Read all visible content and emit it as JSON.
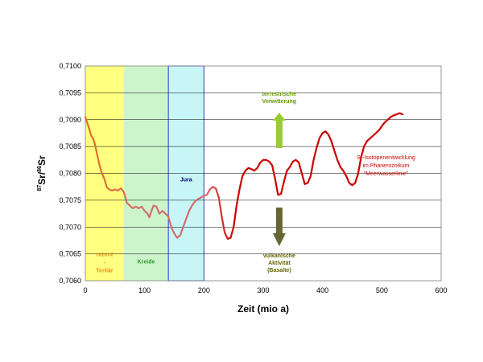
{
  "chart_data": {
    "type": "line",
    "xlabel": "Zeit (mio a)",
    "ylabel_parts": {
      "sup1": "87",
      "base1": "Sr/",
      "sup2": "86",
      "base2": "Sr"
    },
    "xlim": [
      0,
      600
    ],
    "ylim": [
      0.706,
      0.71
    ],
    "x_ticks": [
      "0",
      "100",
      "200",
      "300",
      "400",
      "500",
      "600"
    ],
    "y_ticks": [
      "0,7060",
      "0,7065",
      "0,7070",
      "0,7075",
      "0,7080",
      "0,7085",
      "0,7090",
      "0,7095",
      "0,7100"
    ],
    "grid": "horizontal",
    "periods": [
      {
        "from": 0,
        "to": 65,
        "color": "#ffff80",
        "lines": [
          "rezent",
          "-",
          "Tertiär"
        ],
        "label_color": "#e09020",
        "label_pos": "bottom"
      },
      {
        "from": 65,
        "to": 140,
        "color": "#ccf5cc",
        "lines": [
          "Kreide"
        ],
        "label_color": "#339933",
        "label_pos": "bottom"
      },
      {
        "from": 140,
        "to": 200,
        "color": "#c8f6f6",
        "lines": [
          "Jura"
        ],
        "label_color": "#000080",
        "label_pos": "top",
        "border": "#3333cc"
      }
    ],
    "series": [
      {
        "color": "#cc0000",
        "points": [
          [
            0,
            0.70905
          ],
          [
            3,
            0.70895
          ],
          [
            6,
            0.70885
          ],
          [
            10,
            0.7087
          ],
          [
            13,
            0.70865
          ],
          [
            16,
            0.70855
          ],
          [
            20,
            0.70835
          ],
          [
            24,
            0.70815
          ],
          [
            28,
            0.708
          ],
          [
            32,
            0.7079
          ],
          [
            36,
            0.70775
          ],
          [
            40,
            0.7077
          ],
          [
            45,
            0.70768
          ],
          [
            50,
            0.7077
          ],
          [
            55,
            0.70768
          ],
          [
            60,
            0.70772
          ],
          [
            65,
            0.70765
          ],
          [
            70,
            0.70745
          ],
          [
            75,
            0.7074
          ],
          [
            80,
            0.70735
          ],
          [
            85,
            0.70738
          ],
          [
            90,
            0.70735
          ],
          [
            95,
            0.70738
          ],
          [
            100,
            0.7073
          ],
          [
            105,
            0.70725
          ],
          [
            108,
            0.70718
          ],
          [
            110,
            0.70725
          ],
          [
            115,
            0.7074
          ],
          [
            120,
            0.70738
          ],
          [
            125,
            0.70725
          ],
          [
            130,
            0.7073
          ],
          [
            135,
            0.70725
          ],
          [
            140,
            0.7072
          ],
          [
            145,
            0.707
          ],
          [
            150,
            0.70688
          ],
          [
            155,
            0.7068
          ],
          [
            160,
            0.70685
          ],
          [
            165,
            0.707
          ],
          [
            170,
            0.70715
          ],
          [
            175,
            0.7073
          ],
          [
            180,
            0.7074
          ],
          [
            185,
            0.70748
          ],
          [
            190,
            0.70752
          ],
          [
            195,
            0.70755
          ],
          [
            200,
            0.70758
          ],
          [
            205,
            0.7076
          ],
          [
            210,
            0.7077
          ],
          [
            215,
            0.70775
          ],
          [
            220,
            0.70772
          ],
          [
            225,
            0.70755
          ],
          [
            230,
            0.7072
          ],
          [
            235,
            0.7069
          ],
          [
            240,
            0.70678
          ],
          [
            245,
            0.7068
          ],
          [
            250,
            0.707
          ],
          [
            255,
            0.7074
          ],
          [
            260,
            0.7077
          ],
          [
            265,
            0.70795
          ],
          [
            270,
            0.70805
          ],
          [
            275,
            0.7081
          ],
          [
            280,
            0.70808
          ],
          [
            285,
            0.70805
          ],
          [
            290,
            0.7081
          ],
          [
            295,
            0.7082
          ],
          [
            300,
            0.70825
          ],
          [
            305,
            0.70825
          ],
          [
            310,
            0.70822
          ],
          [
            315,
            0.70815
          ],
          [
            320,
            0.7079
          ],
          [
            325,
            0.7076
          ],
          [
            330,
            0.70762
          ],
          [
            335,
            0.70785
          ],
          [
            340,
            0.70805
          ],
          [
            345,
            0.70812
          ],
          [
            350,
            0.70822
          ],
          [
            355,
            0.70825
          ],
          [
            360,
            0.7082
          ],
          [
            365,
            0.708
          ],
          [
            370,
            0.7078
          ],
          [
            375,
            0.70782
          ],
          [
            380,
            0.70795
          ],
          [
            385,
            0.70825
          ],
          [
            390,
            0.70848
          ],
          [
            395,
            0.70866
          ],
          [
            400,
            0.70875
          ],
          [
            405,
            0.70878
          ],
          [
            410,
            0.70872
          ],
          [
            415,
            0.7086
          ],
          [
            420,
            0.70842
          ],
          [
            425,
            0.70825
          ],
          [
            430,
            0.70812
          ],
          [
            435,
            0.70805
          ],
          [
            440,
            0.70795
          ],
          [
            445,
            0.70782
          ],
          [
            450,
            0.70778
          ],
          [
            455,
            0.70782
          ],
          [
            460,
            0.708
          ],
          [
            465,
            0.7083
          ],
          [
            470,
            0.7085
          ],
          [
            475,
            0.7086
          ],
          [
            480,
            0.70865
          ],
          [
            485,
            0.7087
          ],
          [
            490,
            0.70875
          ],
          [
            495,
            0.7088
          ],
          [
            500,
            0.70888
          ],
          [
            505,
            0.70895
          ],
          [
            510,
            0.709
          ],
          [
            515,
            0.70905
          ],
          [
            520,
            0.70908
          ],
          [
            525,
            0.7091
          ],
          [
            530,
            0.70912
          ],
          [
            535,
            0.7091
          ]
        ]
      }
    ],
    "annotations": {
      "up_lines": [
        "terrestrische",
        "Verwitterung"
      ],
      "up_color": "#669900",
      "up_arrow_color": "#99cc33",
      "down_lines": [
        "vulkanische",
        "Aktivität",
        "(Basalte)"
      ],
      "down_color": "#666600",
      "down_arrow_color": "#666633",
      "legend_lines": [
        "Sr-Isotopenentwicklung",
        "im Phanerozoikum",
        "\"Meerwasserlinie\""
      ],
      "legend_color": "#cc0000"
    }
  }
}
